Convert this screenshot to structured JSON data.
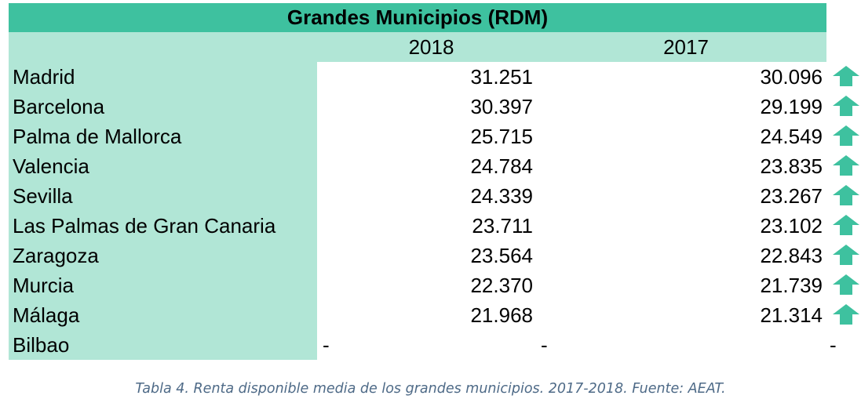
{
  "title": "Grandes Municipios (RDM)",
  "years": [
    "2018",
    "2017"
  ],
  "rows": [
    {
      "name": "Madrid",
      "v2018": "31.251",
      "v2017": "30.096",
      "trend_icon": "arrow-up-icon"
    },
    {
      "name": "Barcelona",
      "v2018": "30.397",
      "v2017": "29.199",
      "trend_icon": "arrow-up-icon"
    },
    {
      "name": "Palma de Mallorca",
      "v2018": "25.715",
      "v2017": "24.549",
      "trend_icon": "arrow-up-icon"
    },
    {
      "name": "Valencia",
      "v2018": "24.784",
      "v2017": "23.835",
      "trend_icon": "arrow-up-icon"
    },
    {
      "name": "Sevilla",
      "v2018": "24.339",
      "v2017": "23.267",
      "trend_icon": "arrow-up-icon"
    },
    {
      "name": "Las Palmas de Gran Canaria",
      "v2018": "23.711",
      "v2017": "23.102",
      "trend_icon": "arrow-up-icon"
    },
    {
      "name": "Zaragoza",
      "v2018": "23.564",
      "v2017": "22.843",
      "trend_icon": "arrow-up-icon"
    },
    {
      "name": "Murcia",
      "v2018": "22.370",
      "v2017": "21.739",
      "trend_icon": "arrow-up-icon"
    },
    {
      "name": "Málaga",
      "v2018": "21.968",
      "v2017": "21.314",
      "trend_icon": "arrow-up-icon"
    }
  ],
  "last_row": {
    "name": "Bilbao",
    "dash_a": "-",
    "dash_b": "-",
    "dash_c": "-"
  },
  "caption": "Tabla 4. Renta disponible media de los grandes municipios. 2017-2018. Fuente: AEAT.",
  "colors": {
    "header": "#3ec19f",
    "light": "#b1e6d6",
    "arrow": "#3ec19f",
    "caption": "#4e6a87"
  }
}
